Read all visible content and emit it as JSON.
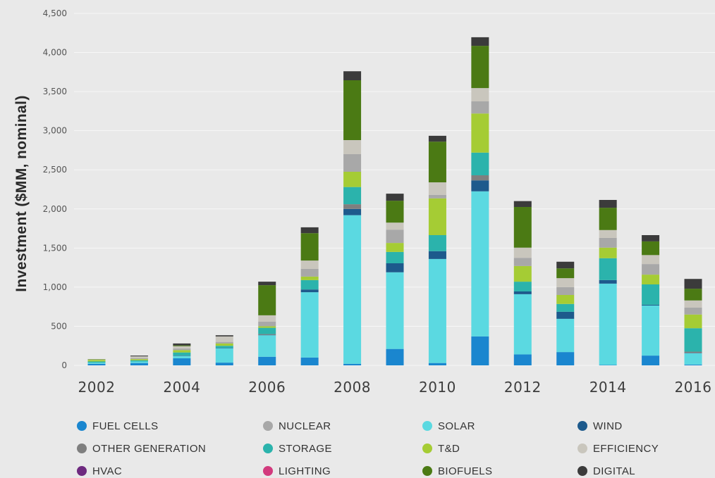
{
  "chart_data": {
    "type": "bar",
    "stacked": true,
    "title": "",
    "xlabel": "",
    "ylabel": "Investment ($MM, nominal)",
    "ylim": [
      0,
      4500
    ],
    "grid": "horizontal",
    "legend_position": "bottom",
    "x": [
      2002,
      2003,
      2004,
      2005,
      2006,
      2007,
      2008,
      2009,
      2010,
      2011,
      2012,
      2013,
      2014,
      2015,
      2016
    ],
    "x_tick_labels": [
      "2002",
      "2004",
      "2006",
      "2008",
      "2010",
      "2012",
      "2014",
      "2016"
    ],
    "y_tick_labels": [
      "0",
      "500",
      "1,000",
      "1,500",
      "2,000",
      "2,500",
      "3,000",
      "3,500",
      "4,000",
      "4,500"
    ],
    "series": [
      {
        "name": "FUEL CELLS",
        "color": "#1a86cf",
        "values": [
          20,
          30,
          90,
          35,
          110,
          100,
          20,
          210,
          30,
          370,
          140,
          170,
          5,
          125,
          10
        ]
      },
      {
        "name": "NUCLEAR",
        "color": "#a8a8a8",
        "values": [
          0,
          10,
          20,
          20,
          60,
          100,
          225,
          170,
          45,
          155,
          105,
          100,
          125,
          135,
          90
        ]
      },
      {
        "name": "SOLAR",
        "color": "#5bd9e1",
        "values": [
          15,
          20,
          30,
          185,
          275,
          835,
          1900,
          980,
          1330,
          1855,
          770,
          425,
          1040,
          640,
          145
        ]
      },
      {
        "name": "WIND",
        "color": "#1d5a8c",
        "values": [
          0,
          0,
          5,
          5,
          5,
          35,
          80,
          115,
          100,
          140,
          35,
          90,
          45,
          10,
          5
        ]
      },
      {
        "name": "OTHER GENERATION",
        "color": "#7f7f7f",
        "values": [
          0,
          0,
          0,
          0,
          10,
          0,
          60,
          0,
          0,
          65,
          0,
          0,
          0,
          0,
          15
        ]
      },
      {
        "name": "STORAGE",
        "color": "#2bb3ac",
        "values": [
          15,
          15,
          40,
          25,
          80,
          120,
          220,
          145,
          205,
          290,
          125,
          100,
          280,
          260,
          300
        ]
      },
      {
        "name": "T&D",
        "color": "#a5cc34",
        "values": [
          20,
          15,
          30,
          30,
          20,
          45,
          195,
          115,
          470,
          500,
          200,
          115,
          135,
          125,
          175
        ]
      },
      {
        "name": "EFFICIENCY",
        "color": "#c9c6bd",
        "values": [
          5,
          25,
          30,
          70,
          80,
          105,
          180,
          90,
          160,
          170,
          130,
          115,
          100,
          115,
          90
        ]
      },
      {
        "name": "HVAC",
        "color": "#6e2a7f",
        "values": [
          0,
          0,
          0,
          0,
          0,
          0,
          0,
          0,
          0,
          0,
          0,
          0,
          0,
          0,
          0
        ]
      },
      {
        "name": "LIGHTING",
        "color": "#d23a7d",
        "values": [
          0,
          0,
          0,
          0,
          0,
          0,
          0,
          0,
          0,
          0,
          0,
          0,
          0,
          0,
          0
        ]
      },
      {
        "name": "BIOFUELS",
        "color": "#4b7a14",
        "values": [
          5,
          0,
          10,
          0,
          385,
          350,
          765,
          280,
          520,
          540,
          520,
          125,
          285,
          175,
          150
        ]
      },
      {
        "name": "DIGITAL",
        "color": "#3b3b3b",
        "values": [
          0,
          10,
          25,
          15,
          45,
          75,
          115,
          90,
          75,
          110,
          75,
          85,
          100,
          80,
          125
        ]
      }
    ]
  }
}
